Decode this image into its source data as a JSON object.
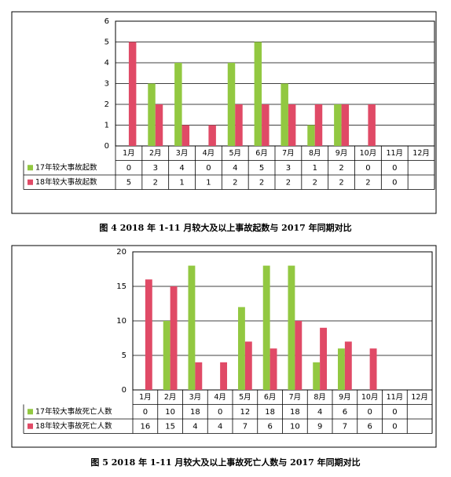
{
  "chart_data": [
    {
      "type": "bar",
      "categories": [
        "1月",
        "2月",
        "3月",
        "4月",
        "5月",
        "6月",
        "7月",
        "8月",
        "9月",
        "10月",
        "11月",
        "12月"
      ],
      "ylim": [
        0,
        6
      ],
      "yticks": [
        "0",
        "1",
        "2",
        "3",
        "4",
        "5",
        "6"
      ],
      "series": [
        {
          "name": "17年较大事故起数",
          "color": "#92c841",
          "values": [
            0,
            3,
            4,
            0,
            4,
            5,
            3,
            1,
            2,
            0,
            0,
            null
          ],
          "labels": [
            "0",
            "3",
            "4",
            "0",
            "4",
            "5",
            "3",
            "1",
            "2",
            "0",
            "0",
            ""
          ]
        },
        {
          "name": "18年较大事故起数",
          "color": "#e04a66",
          "values": [
            5,
            2,
            1,
            1,
            2,
            2,
            2,
            2,
            2,
            2,
            0,
            null
          ],
          "labels": [
            "5",
            "2",
            "1",
            "1",
            "2",
            "2",
            "2",
            "2",
            "2",
            "2",
            "0",
            ""
          ]
        }
      ],
      "caption": "图 4   2018 年 1-11 月较大及以上事故起数与 2017 年同期对比"
    },
    {
      "type": "bar",
      "categories": [
        "1月",
        "2月",
        "3月",
        "4月",
        "5月",
        "6月",
        "7月",
        "8月",
        "9月",
        "10月",
        "11月",
        "12月"
      ],
      "ylim": [
        0,
        20
      ],
      "yticks": [
        "0",
        "5",
        "10",
        "15",
        "20"
      ],
      "series": [
        {
          "name": "17年较大事故死亡人数",
          "color": "#92c841",
          "values": [
            0,
            10,
            18,
            0,
            12,
            18,
            18,
            4,
            6,
            0,
            0,
            null
          ],
          "labels": [
            "0",
            "10",
            "18",
            "0",
            "12",
            "18",
            "18",
            "4",
            "6",
            "0",
            "0",
            ""
          ]
        },
        {
          "name": "18年较大事故死亡人数",
          "color": "#e04a66",
          "values": [
            16,
            15,
            4,
            4,
            7,
            6,
            10,
            9,
            7,
            6,
            0,
            null
          ],
          "labels": [
            "16",
            "15",
            "4",
            "4",
            "7",
            "6",
            "10",
            "9",
            "7",
            "6",
            "0",
            ""
          ]
        }
      ],
      "caption": "图 5   2018 年 1-11 月较大及以上事故死亡人数与 2017 年同期对比"
    }
  ]
}
